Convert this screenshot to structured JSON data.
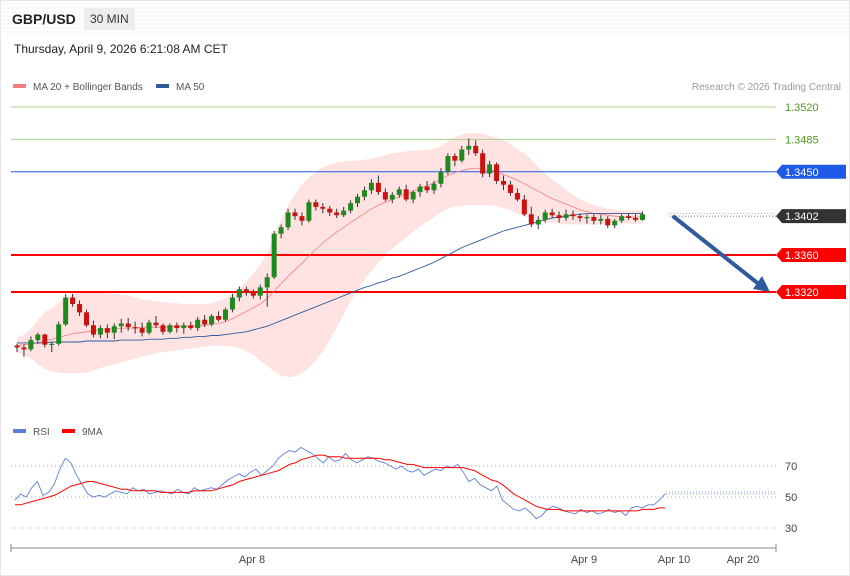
{
  "header": {
    "pair": "GBP/USD",
    "timeframe": "30 MIN",
    "datetime": "Thursday, April 9, 2026 6:21:08 AM CET",
    "copyright": "Research © 2026 Trading Central"
  },
  "chart_data": {
    "type": "candlestick",
    "legend": [
      {
        "label": "MA 20 + Bollinger Bands",
        "color": "#f08080"
      },
      {
        "label": "MA 50",
        "color": "#2f5b9c"
      }
    ],
    "price_axis": {
      "labels": [
        {
          "value": "1.3520",
          "kind": "target",
          "color": "#4a9a1c"
        },
        {
          "value": "1.3485",
          "kind": "target",
          "color": "#4a9a1c"
        },
        {
          "value": "1.3450",
          "kind": "pivot",
          "color": "#1e5ae6"
        },
        {
          "value": "1.3402",
          "kind": "last",
          "color": "#333333"
        },
        {
          "value": "1.3360",
          "kind": "support",
          "color": "#ff0000"
        },
        {
          "value": "1.3320",
          "kind": "support",
          "color": "#ff0000"
        }
      ]
    },
    "x_axis": {
      "labels": [
        "Apr 8",
        "Apr 9",
        "Apr 10",
        "Apr 20"
      ]
    },
    "candles": [
      [
        1.3262,
        1.3264,
        1.3255,
        1.326
      ],
      [
        1.326,
        1.3263,
        1.325,
        1.3258
      ],
      [
        1.3258,
        1.3272,
        1.3256,
        1.3268
      ],
      [
        1.3268,
        1.3276,
        1.3264,
        1.3274
      ],
      [
        1.3274,
        1.3275,
        1.326,
        1.3263
      ],
      [
        1.3263,
        1.3266,
        1.3255,
        1.3264
      ],
      [
        1.3264,
        1.3288,
        1.3262,
        1.3285
      ],
      [
        1.3285,
        1.3318,
        1.3283,
        1.3314
      ],
      [
        1.3314,
        1.3318,
        1.3304,
        1.3307
      ],
      [
        1.3307,
        1.3311,
        1.3294,
        1.3298
      ],
      [
        1.3298,
        1.3301,
        1.3282,
        1.3284
      ],
      [
        1.3284,
        1.3289,
        1.3271,
        1.3274
      ],
      [
        1.3274,
        1.3284,
        1.327,
        1.3281
      ],
      [
        1.3281,
        1.3285,
        1.327,
        1.3276
      ],
      [
        1.3276,
        1.3286,
        1.3269,
        1.3283
      ],
      [
        1.3283,
        1.3291,
        1.3276,
        1.3286
      ],
      [
        1.3286,
        1.3292,
        1.3278,
        1.3282
      ],
      [
        1.3282,
        1.3288,
        1.3275,
        1.3281
      ],
      [
        1.3281,
        1.3287,
        1.3272,
        1.3276
      ],
      [
        1.3276,
        1.329,
        1.3274,
        1.3287
      ],
      [
        1.3287,
        1.3294,
        1.3281,
        1.3284
      ],
      [
        1.3284,
        1.3286,
        1.3274,
        1.3277
      ],
      [
        1.3277,
        1.3286,
        1.3275,
        1.3284
      ],
      [
        1.3284,
        1.3287,
        1.3276,
        1.3281
      ],
      [
        1.3281,
        1.3287,
        1.3275,
        1.3284
      ],
      [
        1.3284,
        1.3288,
        1.3279,
        1.3281
      ],
      [
        1.3281,
        1.3293,
        1.3278,
        1.329
      ],
      [
        1.329,
        1.3295,
        1.3282,
        1.3285
      ],
      [
        1.3285,
        1.3296,
        1.3283,
        1.3294
      ],
      [
        1.3294,
        1.3299,
        1.3288,
        1.329
      ],
      [
        1.329,
        1.3303,
        1.3288,
        1.3301
      ],
      [
        1.3301,
        1.3318,
        1.3298,
        1.3314
      ],
      [
        1.3314,
        1.3326,
        1.331,
        1.3323
      ],
      [
        1.3323,
        1.3326,
        1.3316,
        1.332
      ],
      [
        1.332,
        1.3323,
        1.3313,
        1.3316
      ],
      [
        1.3316,
        1.3328,
        1.3312,
        1.3325
      ],
      [
        1.3325,
        1.334,
        1.3304,
        1.3336
      ],
      [
        1.3336,
        1.3386,
        1.3334,
        1.3383
      ],
      [
        1.3383,
        1.3393,
        1.3378,
        1.339
      ],
      [
        1.339,
        1.341,
        1.3387,
        1.3406
      ],
      [
        1.3406,
        1.341,
        1.3398,
        1.3402
      ],
      [
        1.3402,
        1.3406,
        1.3392,
        1.3397
      ],
      [
        1.3397,
        1.342,
        1.3395,
        1.3417
      ],
      [
        1.3417,
        1.342,
        1.3408,
        1.3412
      ],
      [
        1.3412,
        1.3416,
        1.3405,
        1.341
      ],
      [
        1.341,
        1.3413,
        1.3402,
        1.3406
      ],
      [
        1.3406,
        1.341,
        1.34,
        1.3403
      ],
      [
        1.3403,
        1.3412,
        1.3401,
        1.3408
      ],
      [
        1.3408,
        1.3419,
        1.3405,
        1.3416
      ],
      [
        1.3416,
        1.3426,
        1.3412,
        1.3423
      ],
      [
        1.3423,
        1.3434,
        1.3419,
        1.343
      ],
      [
        1.343,
        1.3442,
        1.3426,
        1.3438
      ],
      [
        1.3438,
        1.3446,
        1.3425,
        1.3428
      ],
      [
        1.3428,
        1.3432,
        1.3418,
        1.342
      ],
      [
        1.342,
        1.3428,
        1.3416,
        1.3425
      ],
      [
        1.3425,
        1.3434,
        1.3422,
        1.3431
      ],
      [
        1.3431,
        1.3436,
        1.3418,
        1.342
      ],
      [
        1.342,
        1.343,
        1.3416,
        1.3428
      ],
      [
        1.3428,
        1.3437,
        1.3423,
        1.3434
      ],
      [
        1.3434,
        1.344,
        1.3427,
        1.343
      ],
      [
        1.343,
        1.344,
        1.3426,
        1.3437
      ],
      [
        1.3437,
        1.3454,
        1.3433,
        1.345
      ],
      [
        1.345,
        1.347,
        1.3447,
        1.3467
      ],
      [
        1.3467,
        1.347,
        1.3456,
        1.3462
      ],
      [
        1.3462,
        1.3478,
        1.346,
        1.3474
      ],
      [
        1.3474,
        1.3486,
        1.3468,
        1.3478
      ],
      [
        1.3478,
        1.3484,
        1.3467,
        1.347
      ],
      [
        1.347,
        1.3474,
        1.3444,
        1.3448
      ],
      [
        1.3448,
        1.3462,
        1.3444,
        1.3458
      ],
      [
        1.3458,
        1.346,
        1.3437,
        1.344
      ],
      [
        1.344,
        1.3446,
        1.343,
        1.3436
      ],
      [
        1.3436,
        1.344,
        1.3424,
        1.3427
      ],
      [
        1.3427,
        1.3432,
        1.3418,
        1.342
      ],
      [
        1.342,
        1.3425,
        1.3402,
        1.3404
      ],
      [
        1.3404,
        1.3412,
        1.339,
        1.3393
      ],
      [
        1.3393,
        1.3402,
        1.3388,
        1.3398
      ],
      [
        1.3398,
        1.3409,
        1.3395,
        1.3406
      ],
      [
        1.3406,
        1.341,
        1.34,
        1.3403
      ],
      [
        1.3403,
        1.3407,
        1.3395,
        1.34
      ],
      [
        1.34,
        1.3409,
        1.3397,
        1.3404
      ],
      [
        1.3404,
        1.3408,
        1.3398,
        1.3402
      ],
      [
        1.3402,
        1.3405,
        1.3396,
        1.34
      ],
      [
        1.34,
        1.3404,
        1.3394,
        1.3401
      ],
      [
        1.3401,
        1.3404,
        1.3393,
        1.3397
      ],
      [
        1.3397,
        1.3403,
        1.3393,
        1.3399
      ],
      [
        1.3399,
        1.3402,
        1.3389,
        1.3392
      ],
      [
        1.3392,
        1.3399,
        1.3389,
        1.3397
      ],
      [
        1.3397,
        1.3404,
        1.3395,
        1.3402
      ],
      [
        1.3402,
        1.3405,
        1.3398,
        1.34
      ],
      [
        1.34,
        1.3404,
        1.3396,
        1.3398
      ],
      [
        1.3398,
        1.3407,
        1.3397,
        1.3404
      ]
    ],
    "ma20": [
      1.3262,
      1.3263,
      1.3264,
      1.3265,
      1.3267,
      1.3269,
      1.3271,
      1.3273,
      1.3275,
      1.3276,
      1.3277,
      1.3278,
      1.3279,
      1.328,
      1.328,
      1.3281,
      1.3281,
      1.3281,
      1.3282,
      1.3282,
      1.3282,
      1.3282,
      1.3282,
      1.3283,
      1.3283,
      1.3283,
      1.3284,
      1.3284,
      1.3285,
      1.3286,
      1.3288,
      1.3291,
      1.3295,
      1.3299,
      1.3303,
      1.3307,
      1.3313,
      1.3321,
      1.3329,
      1.3337,
      1.3344,
      1.3351,
      1.3359,
      1.3366,
      1.3373,
      1.3379,
      1.3385,
      1.339,
      1.3395,
      1.34,
      1.3405,
      1.341,
      1.3414,
      1.3417,
      1.342,
      1.3423,
      1.3426,
      1.3429,
      1.3432,
      1.3435,
      1.3438,
      1.3442,
      1.3446,
      1.3449,
      1.3451,
      1.3453,
      1.3454,
      1.3453,
      1.3452,
      1.345,
      1.3447,
      1.3444,
      1.3441,
      1.3437,
      1.3433,
      1.3429,
      1.3425,
      1.3421,
      1.3418,
      1.3415,
      1.3412,
      1.3409,
      1.3407,
      1.3405,
      1.3404,
      1.3403,
      1.3402,
      1.3401,
      1.3401,
      1.3401,
      1.3401
    ],
    "bb_upper": [
      1.327,
      1.3274,
      1.328,
      1.329,
      1.3298,
      1.3303,
      1.3308,
      1.3314,
      1.3318,
      1.332,
      1.3321,
      1.3321,
      1.332,
      1.3319,
      1.3318,
      1.3317,
      1.3316,
      1.3314,
      1.3312,
      1.3311,
      1.331,
      1.3309,
      1.3308,
      1.3308,
      1.3307,
      1.3307,
      1.3307,
      1.3307,
      1.3308,
      1.331,
      1.3313,
      1.3318,
      1.3324,
      1.3331,
      1.334,
      1.335,
      1.3362,
      1.338,
      1.3398,
      1.3414,
      1.3426,
      1.3436,
      1.3444,
      1.345,
      1.3455,
      1.3458,
      1.346,
      1.3461,
      1.3462,
      1.3462,
      1.3463,
      1.3464,
      1.3466,
      1.3468,
      1.347,
      1.3471,
      1.3472,
      1.3473,
      1.3473,
      1.3474,
      1.3475,
      1.3478,
      1.3483,
      1.3487,
      1.349,
      1.3492,
      1.3492,
      1.3491,
      1.3489,
      1.3487,
      1.3484,
      1.348,
      1.3475,
      1.347,
      1.3463,
      1.3455,
      1.3448,
      1.3442,
      1.3436,
      1.343,
      1.3425,
      1.342,
      1.3417,
      1.3414,
      1.3412,
      1.341,
      1.3409,
      1.3408,
      1.3408,
      1.3408,
      1.3408
    ],
    "bb_lower": [
      1.3254,
      1.3252,
      1.3248,
      1.3242,
      1.3237,
      1.3234,
      1.3233,
      1.3232,
      1.3232,
      1.3232,
      1.3233,
      1.3235,
      1.3238,
      1.324,
      1.3242,
      1.3244,
      1.3246,
      1.3248,
      1.325,
      1.3252,
      1.3254,
      1.3255,
      1.3256,
      1.3257,
      1.3258,
      1.3259,
      1.326,
      1.3261,
      1.3262,
      1.3262,
      1.3262,
      1.3261,
      1.3259,
      1.3256,
      1.3252,
      1.3246,
      1.324,
      1.3234,
      1.323,
      1.3228,
      1.3229,
      1.3232,
      1.3238,
      1.3246,
      1.3256,
      1.3268,
      1.3282,
      1.3296,
      1.331,
      1.3322,
      1.3333,
      1.3343,
      1.3352,
      1.336,
      1.3367,
      1.3373,
      1.3379,
      1.3385,
      1.3391,
      1.3396,
      1.3401,
      1.3406,
      1.341,
      1.3412,
      1.3413,
      1.3414,
      1.3414,
      1.3414,
      1.3414,
      1.3413,
      1.3411,
      1.3408,
      1.3405,
      1.3402,
      1.34,
      1.3398,
      1.3396,
      1.3395,
      1.3394,
      1.3393,
      1.3393,
      1.3393,
      1.3393,
      1.3393,
      1.3393,
      1.3394,
      1.3394,
      1.3394,
      1.3394,
      1.3394,
      1.3394
    ],
    "ma50": [
      1.3265,
      1.3265,
      1.3265,
      1.3265,
      1.3265,
      1.3266,
      1.3266,
      1.3266,
      1.3266,
      1.3266,
      1.3267,
      1.3267,
      1.3267,
      1.3267,
      1.3267,
      1.3268,
      1.3268,
      1.3268,
      1.3268,
      1.3269,
      1.3269,
      1.3269,
      1.327,
      1.327,
      1.3271,
      1.3271,
      1.3272,
      1.3272,
      1.3273,
      1.3273,
      1.3274,
      1.3275,
      1.3276,
      1.3277,
      1.3279,
      1.3281,
      1.3283,
      1.3286,
      1.3289,
      1.3292,
      1.3295,
      1.3298,
      1.3301,
      1.3304,
      1.3307,
      1.331,
      1.3313,
      1.3316,
      1.3319,
      1.3322,
      1.3325,
      1.3327,
      1.333,
      1.3332,
      1.3335,
      1.3337,
      1.334,
      1.3343,
      1.3346,
      1.3349,
      1.3352,
      1.3356,
      1.336,
      1.3364,
      1.3368,
      1.3371,
      1.3374,
      1.3377,
      1.338,
      1.3383,
      1.3386,
      1.3388,
      1.339,
      1.3392,
      1.3394,
      1.3396,
      1.3398,
      1.34,
      1.3401,
      1.3402,
      1.3403,
      1.3404,
      1.3405,
      1.3405,
      1.3405,
      1.3405,
      1.3405,
      1.3405,
      1.3405,
      1.3405,
      1.3405
    ],
    "forecast": {
      "from": 1.34,
      "to": 1.332
    },
    "rsi": {
      "legend": [
        {
          "label": "RSI",
          "color": "#5b7fd6"
        },
        {
          "label": "9MA",
          "color": "#ff0000"
        }
      ],
      "levels": [
        "70",
        "50",
        "30"
      ],
      "rsi_values": [
        48,
        52,
        50,
        56,
        60,
        51,
        53,
        58,
        68,
        75,
        72,
        64,
        58,
        52,
        50,
        51,
        50,
        52,
        54,
        53,
        52,
        56,
        54,
        55,
        52,
        53,
        54,
        53,
        52,
        55,
        53,
        52,
        56,
        54,
        55,
        56,
        55,
        58,
        61,
        63,
        65,
        63,
        66,
        68,
        64,
        67,
        70,
        75,
        78,
        80,
        79,
        82,
        80,
        78,
        75,
        72,
        76,
        73,
        74,
        78,
        74,
        72,
        74,
        76,
        75,
        73,
        72,
        70,
        68,
        70,
        67,
        66,
        68,
        64,
        66,
        68,
        67,
        70,
        69,
        71,
        66,
        60,
        62,
        58,
        56,
        54,
        57,
        48,
        45,
        42,
        41,
        43,
        40,
        36,
        38,
        42,
        44,
        43,
        41,
        40,
        39,
        42,
        40,
        41,
        39,
        40,
        42,
        40,
        41,
        38,
        43,
        44,
        43,
        45,
        45,
        48,
        52
      ],
      "ma_values": [
        45,
        45,
        46,
        47,
        48,
        49,
        50,
        51,
        53,
        55,
        57,
        58,
        59,
        60,
        60,
        59,
        58,
        57,
        56,
        55,
        55,
        54,
        54,
        54,
        54,
        54,
        53,
        53,
        53,
        53,
        53,
        53,
        54,
        54,
        54,
        54,
        55,
        56,
        57,
        58,
        60,
        61,
        62,
        63,
        64,
        65,
        66,
        67,
        69,
        71,
        72,
        74,
        75,
        76,
        77,
        77,
        76,
        76,
        76,
        75,
        75,
        75,
        75,
        75,
        75,
        75,
        74,
        74,
        73,
        72,
        71,
        71,
        70,
        69,
        69,
        69,
        69,
        69,
        69,
        69,
        69,
        68,
        67,
        65,
        63,
        61,
        60,
        58,
        55,
        52,
        50,
        48,
        46,
        44,
        43,
        42,
        42,
        42,
        41,
        41,
        41,
        41,
        41,
        41,
        41,
        41,
        41,
        41,
        41,
        41,
        41,
        41,
        42,
        42,
        42,
        43,
        43
      ],
      "ylim": [
        15,
        85
      ]
    }
  }
}
